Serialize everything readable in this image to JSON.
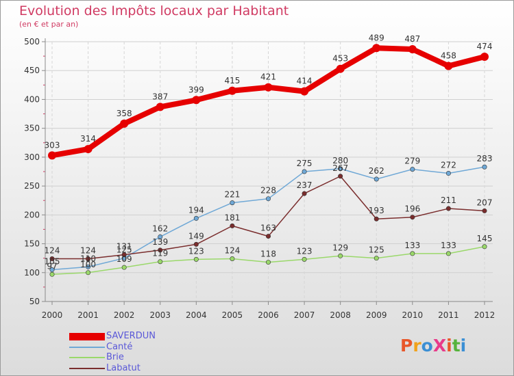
{
  "title": "Evolution des Impôts locaux par Habitant",
  "subtitle": "(en € et par an)",
  "logo": {
    "text": "ProXiti",
    "colors": [
      "#e8572a",
      "#f0a21c",
      "#3b8fd4",
      "#e83a8a",
      "#e8572a",
      "#56b33c",
      "#3b8fd4"
    ]
  },
  "chart_data": {
    "type": "line",
    "x": [
      "2000",
      "2001",
      "2002",
      "2003",
      "2004",
      "2005",
      "2006",
      "2007",
      "2008",
      "2009",
      "2010",
      "2011",
      "2012"
    ],
    "yticks": [
      50,
      100,
      150,
      200,
      250,
      300,
      350,
      400,
      450,
      500
    ],
    "ylim": [
      50,
      500
    ],
    "grid": true,
    "legend_placement": "bottom-left",
    "series": [
      {
        "name": "SAVERDUN",
        "color": "#e60000",
        "values": [
          303,
          314,
          358,
          387,
          399,
          415,
          421,
          414,
          453,
          489,
          487,
          458,
          474
        ],
        "labels": [
          "303",
          "314",
          "358",
          "387",
          "399",
          "415",
          "421",
          "414",
          "453",
          "489",
          "487",
          "458",
          "474"
        ]
      },
      {
        "name": "Canté",
        "color": "#6fa8d6",
        "values": [
          105,
          110,
          125,
          162,
          194,
          221,
          228,
          275,
          280,
          262,
          279,
          272,
          283
        ],
        "labels": [
          "105",
          "110",
          "125",
          "162",
          "194",
          "221",
          "228",
          "275",
          "280",
          "262",
          "279",
          "272",
          "283"
        ]
      },
      {
        "name": "Brie",
        "color": "#9ad86a",
        "values": [
          97,
          100,
          109,
          119,
          123,
          124,
          118,
          123,
          129,
          125,
          133,
          133,
          145
        ],
        "labels": [
          "97",
          "100",
          "109",
          "119",
          "123",
          "124",
          "118",
          "123",
          "129",
          "125",
          "133",
          "133",
          "145"
        ]
      },
      {
        "name": "Labatut",
        "color": "#7a2d2d",
        "values": [
          124,
          124,
          131,
          139,
          149,
          181,
          163,
          237,
          267,
          193,
          196,
          211,
          207
        ],
        "labels": [
          "124",
          "124",
          "131",
          "139",
          "149",
          "181",
          "163",
          "237",
          "267",
          "193",
          "196",
          "211",
          "207"
        ]
      }
    ]
  }
}
